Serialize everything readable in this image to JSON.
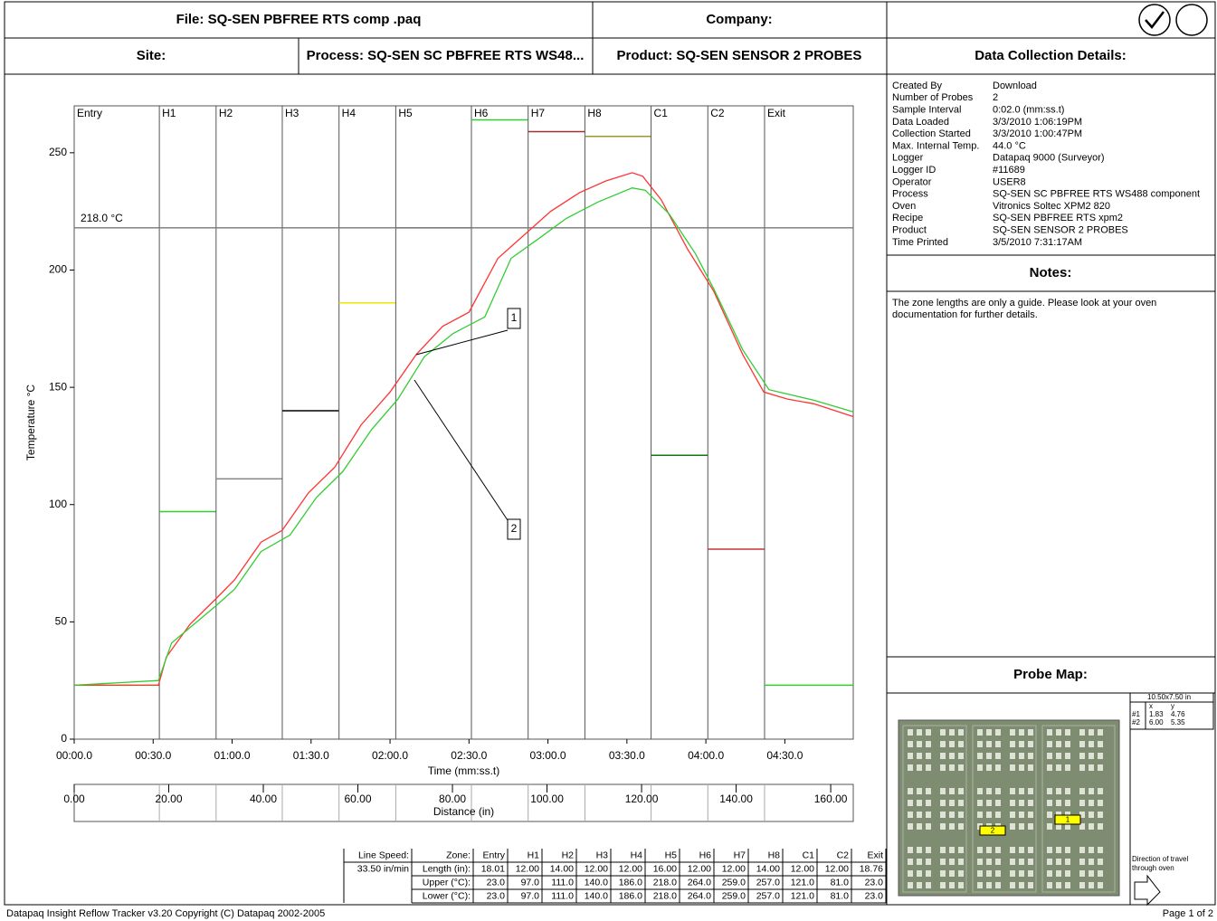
{
  "header": {
    "file": "File: SQ-SEN PBFREE RTS comp .paq",
    "company": "Company:",
    "site": "Site:",
    "process": "Process: SQ-SEN SC PBFREE RTS WS48...",
    "product": "Product: SQ-SEN SENSOR 2 PROBES"
  },
  "details": {
    "title": "Data Collection Details:",
    "rows": [
      [
        "Created By",
        "Download"
      ],
      [
        "Number of Probes",
        "2"
      ],
      [
        "Sample Interval",
        "0:02.0 (mm:ss.t)"
      ],
      [
        "Data Loaded",
        "3/3/2010 1:06:19PM"
      ],
      [
        "Collection Started",
        "3/3/2010 1:00:47PM"
      ],
      [
        "Max. Internal Temp.",
        "44.0 °C"
      ],
      [
        "Logger",
        "Datapaq 9000 (Surveyor)"
      ],
      [
        "Logger ID",
        "#11689"
      ],
      [
        "Operator",
        "USER8"
      ],
      [
        "Process",
        "SQ-SEN SC PBFREE RTS WS488 component"
      ],
      [
        "Oven",
        "Vitronics Soltec XPM2 820"
      ],
      [
        "Recipe",
        "SQ-SEN PBFREE RTS xpm2"
      ],
      [
        "Product",
        "SQ-SEN SENSOR 2 PROBES"
      ],
      [
        "Time Printed",
        "3/5/2010 7:31:17AM"
      ]
    ]
  },
  "notes": {
    "title": "Notes:",
    "text": [
      "The zone lengths are only a guide.  Please look at your oven",
      "documentation for further details."
    ]
  },
  "probe_map": {
    "title": "Probe Map:",
    "size": "10.50x7.50 in",
    "columns": [
      "x",
      "y"
    ],
    "rows": [
      [
        "#1",
        "1.83",
        "4.76"
      ],
      [
        "#2",
        "6.00",
        "5.35"
      ]
    ],
    "direction": [
      "Direction of travel",
      "through oven"
    ],
    "markers": [
      "1",
      "2"
    ]
  },
  "chart_data": {
    "type": "line",
    "y_label": "Temperature °C",
    "x_label": "Time (mm:ss.t)",
    "xlim": [
      0,
      296
    ],
    "ylim": [
      0,
      270
    ],
    "xticks": [
      {
        "value": 0,
        "label": "00:00.0"
      },
      {
        "value": 30,
        "label": "00:30.0"
      },
      {
        "value": 60,
        "label": "01:00.0"
      },
      {
        "value": 90,
        "label": "01:30.0"
      },
      {
        "value": 120,
        "label": "02:00.0"
      },
      {
        "value": 150,
        "label": "02:30.0"
      },
      {
        "value": 180,
        "label": "03:00.0"
      },
      {
        "value": 210,
        "label": "03:30.0"
      },
      {
        "value": 240,
        "label": "04:00.0"
      },
      {
        "value": 270,
        "label": "04:30.0"
      }
    ],
    "yticks": [
      0,
      50,
      100,
      150,
      200,
      250
    ],
    "reference_line": {
      "value": 218,
      "label": "218.0 °C",
      "color": "#777777"
    },
    "distance": {
      "label": "Distance (in)",
      "lim": [
        0,
        164.77
      ],
      "ticks": [
        {
          "value": 0,
          "label": "0.00"
        },
        {
          "value": 20,
          "label": "20.00"
        },
        {
          "value": 40,
          "label": "40.00"
        },
        {
          "value": 60,
          "label": "60.00"
        },
        {
          "value": 80,
          "label": "80.00"
        },
        {
          "value": 100,
          "label": "100.00"
        },
        {
          "value": 120,
          "label": "120.00"
        },
        {
          "value": 140,
          "label": "140.00"
        },
        {
          "value": 160,
          "label": "160.00"
        }
      ]
    },
    "setpoint_colors": [
      "#33cc33",
      "#33cc33",
      "#888888",
      "#000000",
      "#f2e600",
      "#888888",
      "#33cc33",
      "#993333",
      "#999933",
      "#117711",
      "#cc3333",
      "#33cc33"
    ],
    "series": [
      {
        "name": "1",
        "color": "#ff3333",
        "x": [
          0,
          32,
          35,
          44,
          54,
          61,
          71,
          79,
          89,
          99,
          109,
          120,
          130,
          140,
          150,
          161,
          171,
          181,
          192,
          202,
          212,
          216,
          223,
          233,
          243,
          254,
          262,
          271,
          281,
          296
        ],
        "values": [
          23,
          23,
          35,
          49,
          60,
          68,
          84,
          89,
          105,
          116,
          134,
          148,
          164,
          176,
          182,
          205,
          215,
          225,
          233,
          238,
          241.5,
          240,
          230,
          209,
          191,
          164,
          148,
          145,
          143,
          137.5
        ]
      },
      {
        "name": "2",
        "color": "#33cc33",
        "x": [
          0,
          32,
          37,
          54,
          61,
          71,
          82,
          92,
          102,
          113,
          123,
          133,
          144,
          156,
          166,
          176,
          187,
          199,
          212,
          217,
          226,
          236,
          243,
          254,
          264,
          281,
          296
        ],
        "values": [
          23,
          25,
          41,
          57,
          64,
          80,
          87,
          103,
          114,
          132,
          145,
          163,
          173,
          180,
          205,
          213,
          222,
          229,
          235,
          234,
          224,
          207,
          192,
          166,
          149,
          144.5,
          139.5
        ]
      }
    ]
  },
  "zone_table": {
    "line_speed_label": "Line Speed:",
    "line_speed": "33.50 in/min",
    "row_labels": [
      "Zone:",
      "Length (in):",
      "Upper (°C):",
      "Lower (°C):"
    ],
    "zones": [
      "Entry",
      "H1",
      "H2",
      "H3",
      "H4",
      "H5",
      "H6",
      "H7",
      "H8",
      "C1",
      "C2",
      "Exit"
    ],
    "length": [
      "18.01",
      "12.00",
      "14.00",
      "12.00",
      "12.00",
      "16.00",
      "12.00",
      "12.00",
      "14.00",
      "12.00",
      "12.00",
      "18.76"
    ],
    "upper": [
      "23.0",
      "97.0",
      "111.0",
      "140.0",
      "186.0",
      "218.0",
      "264.0",
      "259.0",
      "257.0",
      "121.0",
      "81.0",
      "23.0"
    ],
    "lower": [
      "23.0",
      "97.0",
      "111.0",
      "140.0",
      "186.0",
      "218.0",
      "264.0",
      "259.0",
      "257.0",
      "121.0",
      "81.0",
      "23.0"
    ]
  },
  "footer": {
    "left": "Datapaq Insight Reflow Tracker v3.20  Copyright (C) Datapaq 2002-2005",
    "right": "Page 1 of 2"
  }
}
